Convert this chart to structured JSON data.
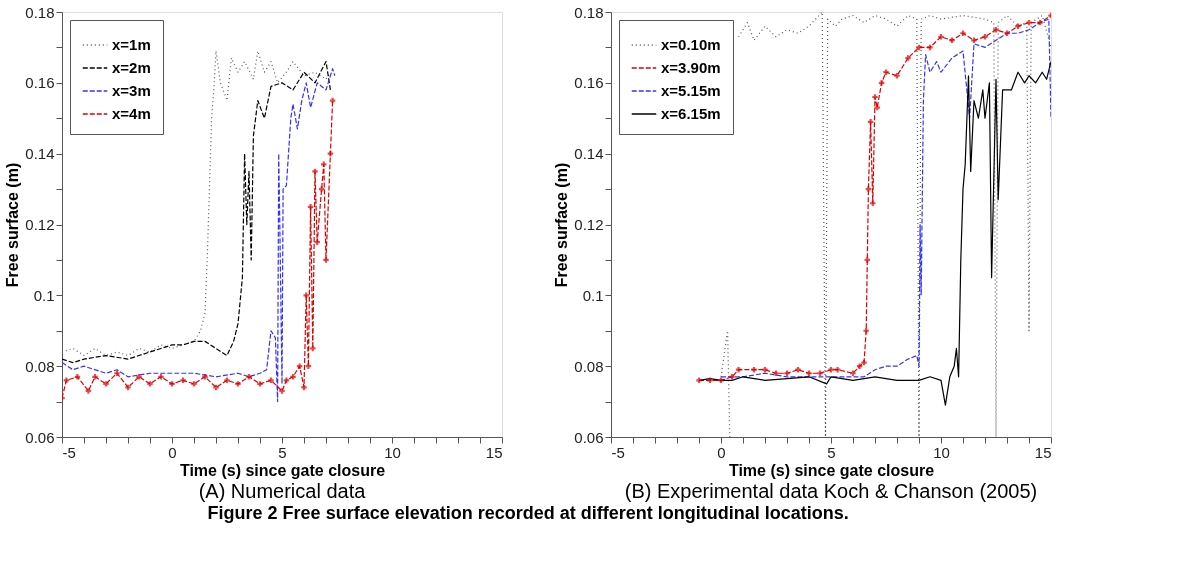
{
  "chart_data": [
    {
      "type": "line",
      "title": "(A) Numerical data",
      "xlabel": "Time (s) since gate closure",
      "ylabel": "Free surface (m)",
      "annotations": [
        "Figure 2 Free surface elevation recorded at different longitudinal locations."
      ],
      "xlim": [
        -5,
        15
      ],
      "ylim": [
        0.06,
        0.18
      ],
      "xticks": [
        -5,
        {
          "value": -4,
          "label": null
        },
        {
          "value": -3,
          "label": null
        },
        {
          "value": -2,
          "label": null
        },
        {
          "value": -1,
          "label": null
        },
        0,
        {
          "value": 1,
          "label": null
        },
        {
          "value": 2,
          "label": null
        },
        {
          "value": 3,
          "label": null
        },
        {
          "value": 4,
          "label": null
        },
        5,
        {
          "value": 6,
          "label": null
        },
        {
          "value": 7,
          "label": null
        },
        {
          "value": 8,
          "label": null
        },
        {
          "value": 9,
          "label": null
        },
        10,
        {
          "value": 11,
          "label": null
        },
        {
          "value": 12,
          "label": null
        },
        {
          "value": 13,
          "label": null
        },
        {
          "value": 14,
          "label": null
        },
        15
      ],
      "yticks": [
        0.06,
        {
          "value": 0.07,
          "label": null
        },
        0.08,
        {
          "value": 0.09,
          "label": null
        },
        0.1,
        {
          "value": 0.11,
          "label": null
        },
        0.12,
        {
          "value": 0.13,
          "label": null
        },
        0.14,
        {
          "value": 0.15,
          "label": null
        },
        0.16,
        {
          "value": 0.17,
          "label": null
        },
        0.18
      ],
      "grid": false,
      "legend": "top left",
      "series": [
        {
          "name": "x=1m",
          "color": "#555555",
          "line_style": "dotted",
          "marker": "none",
          "x": [
            -5,
            -4.5,
            -4,
            -3.5,
            -3,
            -2.5,
            -2,
            -1.5,
            -1,
            -0.5,
            0,
            0.5,
            1,
            1.3,
            1.5,
            1.6,
            1.7,
            1.8,
            1.9,
            2.0,
            2.2,
            2.5,
            2.7,
            3,
            3.3,
            3.7,
            3.9,
            4.2,
            4.5,
            4.8,
            5.2,
            5.5,
            6,
            6.5,
            7,
            7.2
          ],
          "values": [
            0.084,
            0.085,
            0.083,
            0.085,
            0.083,
            0.084,
            0.083,
            0.085,
            0.084,
            0.086,
            0.085,
            0.086,
            0.087,
            0.09,
            0.095,
            0.11,
            0.13,
            0.15,
            0.158,
            0.169,
            0.16,
            0.155,
            0.167,
            0.163,
            0.166,
            0.161,
            0.169,
            0.163,
            0.166,
            0.16,
            0.163,
            0.166,
            0.162,
            0.163,
            0.161,
            0.163
          ]
        },
        {
          "name": "x=2m",
          "color": "#000000",
          "line_style": "dashed",
          "marker": "none",
          "x": [
            -5,
            -4.5,
            -4,
            -3,
            -2,
            -1.5,
            -1,
            -0.5,
            0,
            0.5,
            1,
            1.5,
            2,
            2.5,
            2.8,
            3.0,
            3.2,
            3.3,
            3.4,
            3.5,
            3.6,
            3.7,
            3.9,
            4.2,
            4.5,
            5,
            5.5,
            6,
            6.5,
            7,
            7.2
          ],
          "values": [
            0.082,
            0.081,
            0.082,
            0.083,
            0.082,
            0.083,
            0.084,
            0.085,
            0.086,
            0.086,
            0.087,
            0.087,
            0.085,
            0.083,
            0.087,
            0.092,
            0.105,
            0.14,
            0.12,
            0.135,
            0.11,
            0.145,
            0.155,
            0.15,
            0.159,
            0.16,
            0.158,
            0.163,
            0.16,
            0.166,
            0.158
          ]
        },
        {
          "name": "x=3m",
          "color": "#3333ff",
          "line_style": "dashed",
          "marker": "none",
          "x": [
            -5,
            -4.5,
            -4,
            -3,
            -2.5,
            -2,
            -1,
            0,
            1,
            2,
            3,
            3.5,
            4,
            4.3,
            4.5,
            4.7,
            4.8,
            4.85,
            4.9,
            5.0,
            5.05,
            5.2,
            5.4,
            5.5,
            5.7,
            5.9,
            6.1,
            6.3,
            6.6,
            7,
            7.3,
            7.4
          ],
          "values": [
            0.081,
            0.079,
            0.08,
            0.078,
            0.079,
            0.077,
            0.078,
            0.078,
            0.078,
            0.077,
            0.078,
            0.077,
            0.078,
            0.079,
            0.09,
            0.088,
            0.07,
            0.14,
            0.12,
            0.075,
            0.13,
            0.131,
            0.15,
            0.154,
            0.147,
            0.155,
            0.16,
            0.153,
            0.16,
            0.158,
            0.164,
            0.162
          ]
        },
        {
          "name": "x=4m",
          "color": "#dd0000",
          "line_style": "dashed",
          "marker": "cross",
          "x": [
            -5,
            -4.8,
            -4.3,
            -3.8,
            -3.5,
            -3,
            -2.5,
            -2,
            -1.5,
            -1,
            -0.5,
            0,
            0.5,
            1,
            1.5,
            2,
            2.5,
            3,
            3.5,
            4,
            4.5,
            5,
            5.2,
            5.5,
            5.8,
            6,
            6.1,
            6.2,
            6.3,
            6.4,
            6.5,
            6.6,
            6.8,
            6.9,
            7.0,
            7.2,
            7.3
          ],
          "values": [
            0.071,
            0.076,
            0.077,
            0.073,
            0.077,
            0.075,
            0.078,
            0.074,
            0.077,
            0.075,
            0.077,
            0.075,
            0.076,
            0.075,
            0.077,
            0.074,
            0.076,
            0.075,
            0.077,
            0.075,
            0.076,
            0.073,
            0.076,
            0.077,
            0.08,
            0.074,
            0.1,
            0.08,
            0.125,
            0.085,
            0.135,
            0.115,
            0.13,
            0.137,
            0.11,
            0.14,
            0.155
          ]
        }
      ]
    },
    {
      "type": "line",
      "title": "(B) Experimental data Koch & Chanson (2005)",
      "xlabel": "Time (s) since gate closure",
      "ylabel": "Free surface (m)",
      "xlim": [
        -5,
        15
      ],
      "ylim": [
        0.06,
        0.18
      ],
      "xticks": [
        -5,
        {
          "value": -4,
          "label": null
        },
        {
          "value": -3,
          "label": null
        },
        {
          "value": -2,
          "label": null
        },
        {
          "value": -1,
          "label": null
        },
        0,
        {
          "value": 1,
          "label": null
        },
        {
          "value": 2,
          "label": null
        },
        {
          "value": 3,
          "label": null
        },
        {
          "value": 4,
          "label": null
        },
        5,
        {
          "value": 6,
          "label": null
        },
        {
          "value": 7,
          "label": null
        },
        {
          "value": 8,
          "label": null
        },
        {
          "value": 9,
          "label": null
        },
        10,
        {
          "value": 11,
          "label": null
        },
        {
          "value": 12,
          "label": null
        },
        {
          "value": 13,
          "label": null
        },
        {
          "value": 14,
          "label": null
        },
        15
      ],
      "yticks": [
        0.06,
        {
          "value": 0.07,
          "label": null
        },
        0.08,
        {
          "value": 0.09,
          "label": null
        },
        0.1,
        {
          "value": 0.11,
          "label": null
        },
        0.12,
        {
          "value": 0.13,
          "label": null
        },
        0.14,
        {
          "value": 0.15,
          "label": null
        },
        0.16,
        {
          "value": 0.17,
          "label": null
        },
        0.18
      ],
      "grid": false,
      "legend": "top left",
      "series": [
        {
          "name": "x=0.10m",
          "color": "#555555",
          "line_style": "dotted",
          "marker": "none",
          "x": [
            0,
            0.3,
            0.4,
            0.5,
            0.8,
            1.2,
            1.5,
            2,
            2.5,
            3,
            3.5,
            4,
            4.6,
            4.75,
            4.85,
            5.2,
            5.5,
            6,
            6.5,
            7,
            7.5,
            8,
            8.5,
            8.9,
            9.0,
            9.1,
            9.5,
            10,
            11,
            12,
            12.4,
            12.5,
            12.6,
            13,
            13.5,
            13.9,
            14.0,
            14.1,
            14.6,
            15
          ],
          "values": [
            0.077,
            0.09,
            0.06,
            null,
            0.173,
            0.177,
            0.172,
            0.176,
            0.173,
            0.175,
            0.174,
            0.176,
            0.18,
            0.06,
            0.178,
            0.176,
            0.178,
            0.179,
            0.177,
            0.179,
            0.178,
            0.176,
            0.179,
            0.178,
            0.06,
            0.178,
            0.179,
            0.178,
            0.179,
            0.178,
            0.177,
            0.06,
            0.177,
            0.179,
            0.176,
            0.177,
            0.09,
            0.177,
            0.179,
            0.17
          ]
        },
        {
          "name": "x=3.90m",
          "color": "#dd0000",
          "line_style": "dashed",
          "marker": "cross",
          "x": [
            -1,
            -0.5,
            0,
            0.5,
            0.8,
            1.5,
            2,
            2.5,
            3,
            3.5,
            4,
            4.5,
            5,
            5.3,
            6,
            6.3,
            6.5,
            6.6,
            6.65,
            6.7,
            6.8,
            6.9,
            7.0,
            7.1,
            7.3,
            7.5,
            8,
            8.5,
            9,
            9.5,
            10,
            10.5,
            11,
            11.5,
            12,
            12.5,
            13,
            13.5,
            14,
            14.5,
            15
          ],
          "values": [
            0.076,
            0.076,
            0.076,
            0.077,
            0.079,
            0.079,
            0.079,
            0.078,
            0.078,
            0.079,
            0.078,
            0.078,
            0.079,
            0.079,
            0.078,
            0.08,
            0.081,
            0.09,
            0.11,
            0.13,
            0.149,
            0.126,
            0.156,
            0.153,
            0.16,
            0.163,
            0.162,
            0.167,
            0.17,
            0.17,
            0.173,
            0.172,
            0.174,
            0.172,
            0.173,
            0.175,
            0.174,
            0.176,
            0.177,
            0.177,
            0.179
          ]
        },
        {
          "name": "x=5.15m",
          "color": "#3333ff",
          "line_style": "dashed",
          "marker": "none",
          "x": [
            0,
            1,
            2,
            3,
            4,
            5,
            6,
            6.5,
            7,
            7.5,
            8,
            8.5,
            8.9,
            9.0,
            9.05,
            9.1,
            9.2,
            9.3,
            9.5,
            9.8,
            10,
            10.5,
            11,
            11.3,
            11.5,
            12,
            12.5,
            13,
            13.5,
            14,
            14.5,
            14.9,
            15
          ],
          "values": [
            0.077,
            0.077,
            0.078,
            0.077,
            0.077,
            0.077,
            0.077,
            0.077,
            0.079,
            0.08,
            0.08,
            0.082,
            0.083,
            0.08,
            0.12,
            0.1,
            0.155,
            0.168,
            0.163,
            0.166,
            0.163,
            0.167,
            0.169,
            0.15,
            0.171,
            0.17,
            0.172,
            0.174,
            0.174,
            0.175,
            0.177,
            0.178,
            0.15
          ]
        },
        {
          "name": "x=6.15m",
          "color": "#000000",
          "line_style": "solid",
          "marker": "none",
          "x": [
            -1,
            -0.5,
            0,
            0.5,
            1,
            2,
            3,
            4,
            4.8,
            5,
            6,
            7,
            8,
            9,
            9.5,
            10,
            10.2,
            10.4,
            10.6,
            10.7,
            10.8,
            10.9,
            11.0,
            11.1,
            11.25,
            11.35,
            11.5,
            11.7,
            11.9,
            12.0,
            12.2,
            12.3,
            12.5,
            12.6,
            12.8,
            13.2,
            13.5,
            13.8,
            14,
            14.3,
            14.6,
            14.8,
            15
          ],
          "values": [
            0.076,
            0.0765,
            0.076,
            0.076,
            0.077,
            0.076,
            0.0765,
            0.077,
            0.075,
            0.077,
            0.076,
            0.077,
            0.076,
            0.076,
            0.077,
            0.076,
            0.069,
            0.077,
            0.08,
            0.085,
            0.077,
            0.11,
            0.13,
            0.137,
            0.162,
            0.135,
            0.155,
            0.15,
            0.158,
            0.15,
            0.16,
            0.105,
            0.161,
            0.127,
            0.158,
            0.158,
            0.163,
            0.16,
            0.162,
            0.16,
            0.163,
            0.161,
            0.166
          ]
        }
      ]
    }
  ]
}
